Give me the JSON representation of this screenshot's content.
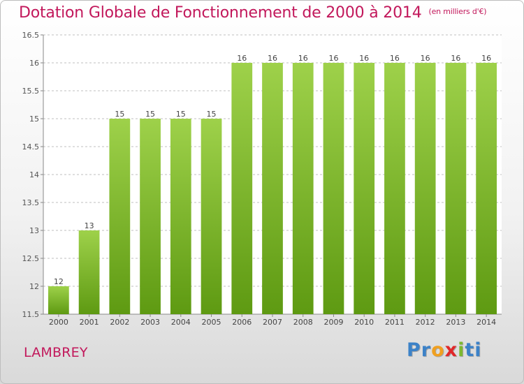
{
  "header": {
    "title": "Dotation Globale de Fonctionnement de 2000 à 2014",
    "unit_note": "(en milliers d'€)"
  },
  "footer": {
    "town": "LAMBREY",
    "brand_parts": [
      "Pr",
      "o",
      "x",
      "i",
      "ti"
    ]
  },
  "colors": {
    "title": "#c2185b",
    "bar_top": "#9ed14a",
    "bar_bottom": "#5e9a12",
    "grid": "#bfbfbf"
  },
  "chart_data": {
    "type": "bar",
    "categories": [
      "2000",
      "2001",
      "2002",
      "2003",
      "2004",
      "2005",
      "2006",
      "2007",
      "2008",
      "2009",
      "2010",
      "2011",
      "2012",
      "2013",
      "2014"
    ],
    "values": [
      12,
      13,
      15,
      15,
      15,
      15,
      16,
      16,
      16,
      16,
      16,
      16,
      16,
      16,
      16
    ],
    "value_labels": [
      "12",
      "13",
      "15",
      "15",
      "15",
      "15",
      "16",
      "16",
      "16",
      "16",
      "16",
      "16",
      "16",
      "16",
      "16"
    ],
    "title": "Dotation Globale de Fonctionnement de 2000 à 2014",
    "xlabel": "",
    "ylabel": "",
    "ylim": [
      11.5,
      16.5
    ],
    "yticks": [
      11.5,
      12,
      12.5,
      13,
      13.5,
      14,
      14.5,
      15,
      15.5,
      16,
      16.5
    ],
    "ytick_labels": [
      "11.5",
      "12",
      "12.5",
      "13",
      "13.5",
      "14",
      "14.5",
      "15",
      "15.5",
      "16",
      "16.5"
    ],
    "grid": true,
    "legend": "none"
  }
}
